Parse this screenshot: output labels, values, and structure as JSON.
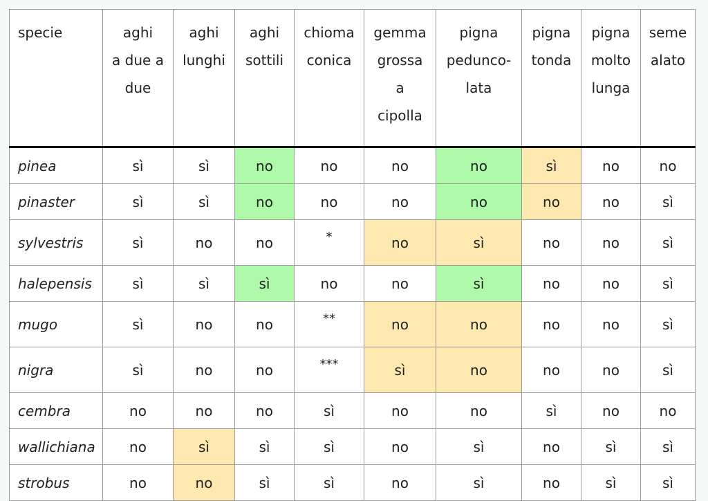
{
  "colors": {
    "green_highlight": "#aefaaa",
    "yellow_highlight": "#fde8b0"
  },
  "headers": [
    [
      "specie"
    ],
    [
      "aghi",
      "a due a",
      "due"
    ],
    [
      "aghi",
      "lunghi"
    ],
    [
      "aghi",
      "sottili"
    ],
    [
      "chioma",
      "conica"
    ],
    [
      "gemma",
      "grossa",
      "a",
      "cipolla"
    ],
    [
      "pigna",
      "peduncо-",
      "lata"
    ],
    [
      "pigna",
      "tonda"
    ],
    [
      "pigna",
      "molto",
      "lunga"
    ],
    [
      "seme",
      "alato"
    ]
  ],
  "rows": [
    {
      "species": "pinea",
      "cells": [
        {
          "v": "sì"
        },
        {
          "v": "sì"
        },
        {
          "v": "no",
          "hl": "green"
        },
        {
          "v": "no"
        },
        {
          "v": "no"
        },
        {
          "v": "no",
          "hl": "green"
        },
        {
          "v": "sì",
          "hl": "yellow"
        },
        {
          "v": "no"
        },
        {
          "v": "no"
        }
      ]
    },
    {
      "species": "pinaster",
      "cells": [
        {
          "v": "sì"
        },
        {
          "v": "sì"
        },
        {
          "v": "no",
          "hl": "green"
        },
        {
          "v": "no"
        },
        {
          "v": "no"
        },
        {
          "v": "no",
          "hl": "green"
        },
        {
          "v": "no",
          "hl": "yellow"
        },
        {
          "v": "no"
        },
        {
          "v": "sì"
        }
      ]
    },
    {
      "species": "sylvestris",
      "cells": [
        {
          "v": "sì"
        },
        {
          "v": "no"
        },
        {
          "v": "no"
        },
        {
          "v": "*",
          "note": true
        },
        {
          "v": "no",
          "hl": "yellow"
        },
        {
          "v": "sì",
          "hl": "yellow"
        },
        {
          "v": "no"
        },
        {
          "v": "no"
        },
        {
          "v": "sì"
        }
      ]
    },
    {
      "species": "halepensis",
      "cells": [
        {
          "v": "sì"
        },
        {
          "v": "sì"
        },
        {
          "v": "sì",
          "hl": "green"
        },
        {
          "v": "no"
        },
        {
          "v": "no"
        },
        {
          "v": "sì",
          "hl": "green"
        },
        {
          "v": "no"
        },
        {
          "v": "no"
        },
        {
          "v": "sì"
        }
      ]
    },
    {
      "species": "mugo",
      "cells": [
        {
          "v": "sì"
        },
        {
          "v": "no"
        },
        {
          "v": "no"
        },
        {
          "v": "**",
          "note": true
        },
        {
          "v": "no",
          "hl": "yellow"
        },
        {
          "v": "no",
          "hl": "yellow"
        },
        {
          "v": "no"
        },
        {
          "v": "no"
        },
        {
          "v": "sì"
        }
      ]
    },
    {
      "species": "nigra",
      "cells": [
        {
          "v": "sì"
        },
        {
          "v": "no"
        },
        {
          "v": "no"
        },
        {
          "v": "***",
          "note": true
        },
        {
          "v": "sì",
          "hl": "yellow"
        },
        {
          "v": "no",
          "hl": "yellow"
        },
        {
          "v": "no"
        },
        {
          "v": "no"
        },
        {
          "v": "sì"
        }
      ]
    },
    {
      "species": "cembra",
      "cells": [
        {
          "v": "no"
        },
        {
          "v": "no"
        },
        {
          "v": "no"
        },
        {
          "v": "sì"
        },
        {
          "v": "no"
        },
        {
          "v": "no"
        },
        {
          "v": "sì"
        },
        {
          "v": "no"
        },
        {
          "v": "no"
        }
      ]
    },
    {
      "species": "wallichiana",
      "cells": [
        {
          "v": "no"
        },
        {
          "v": "sì",
          "hl": "yellow"
        },
        {
          "v": "sì"
        },
        {
          "v": "sì"
        },
        {
          "v": "no"
        },
        {
          "v": "sì"
        },
        {
          "v": "no"
        },
        {
          "v": "sì"
        },
        {
          "v": "sì"
        }
      ]
    },
    {
      "species": "strobus",
      "cells": [
        {
          "v": "no"
        },
        {
          "v": "no",
          "hl": "yellow"
        },
        {
          "v": "sì"
        },
        {
          "v": "sì"
        },
        {
          "v": "no"
        },
        {
          "v": "sì"
        },
        {
          "v": "no"
        },
        {
          "v": "sì"
        },
        {
          "v": "sì"
        }
      ]
    }
  ]
}
